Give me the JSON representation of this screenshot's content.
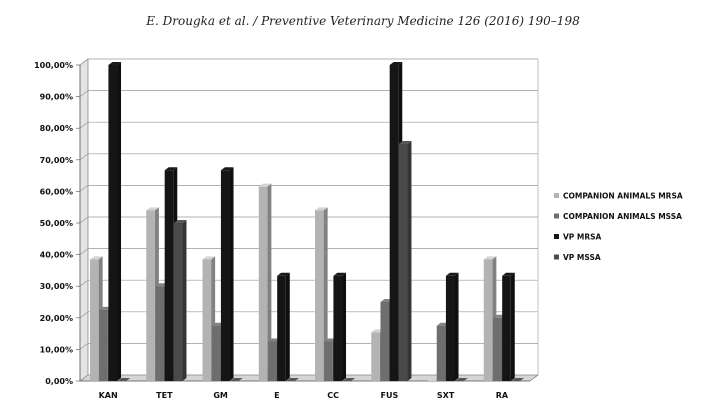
{
  "header": {
    "citation": "E. Drougka et al. / Preventive Veterinary Medicine 126 (2016) 190–198"
  },
  "colors": {
    "grid": "#9a9a9a",
    "axis": "#666666",
    "wall_left": "#e4e4e4",
    "floor": "#d6d6d6"
  },
  "chart_data": {
    "type": "bar",
    "style": "3d-clustered-column",
    "categories": [
      "KAN",
      "TET",
      "GM",
      "E",
      "CC",
      "FUS",
      "SXT",
      "RA"
    ],
    "series": [
      {
        "name": "COMPANION ANIMALS MRSA",
        "color": "#b3b3b3",
        "values": [
          38.5,
          54,
          38.5,
          61.5,
          54,
          15.4,
          0,
          38.5
        ]
      },
      {
        "name": "COMPANION ANIMALS MSSA",
        "color": "#6e6e6e",
        "values": [
          22.5,
          30,
          17.5,
          12.5,
          12.5,
          25,
          17.5,
          20
        ]
      },
      {
        "name": "VP MRSA",
        "color": "#151515",
        "values": [
          100,
          66.7,
          66.7,
          33.3,
          33.3,
          100,
          33.3,
          33.3
        ]
      },
      {
        "name": "VP MSSA",
        "color": "#4a4a4a",
        "values": [
          0,
          50,
          0,
          0,
          0,
          75,
          0,
          0
        ]
      }
    ],
    "y_ticks": [
      "0,00%",
      "10,00%",
      "20,00%",
      "30,00%",
      "40,00%",
      "50,00%",
      "60,00%",
      "70,00%",
      "80,00%",
      "90,00%",
      "100,00%"
    ],
    "ylim": [
      0,
      100
    ],
    "grid": true,
    "legend_position": "right"
  }
}
